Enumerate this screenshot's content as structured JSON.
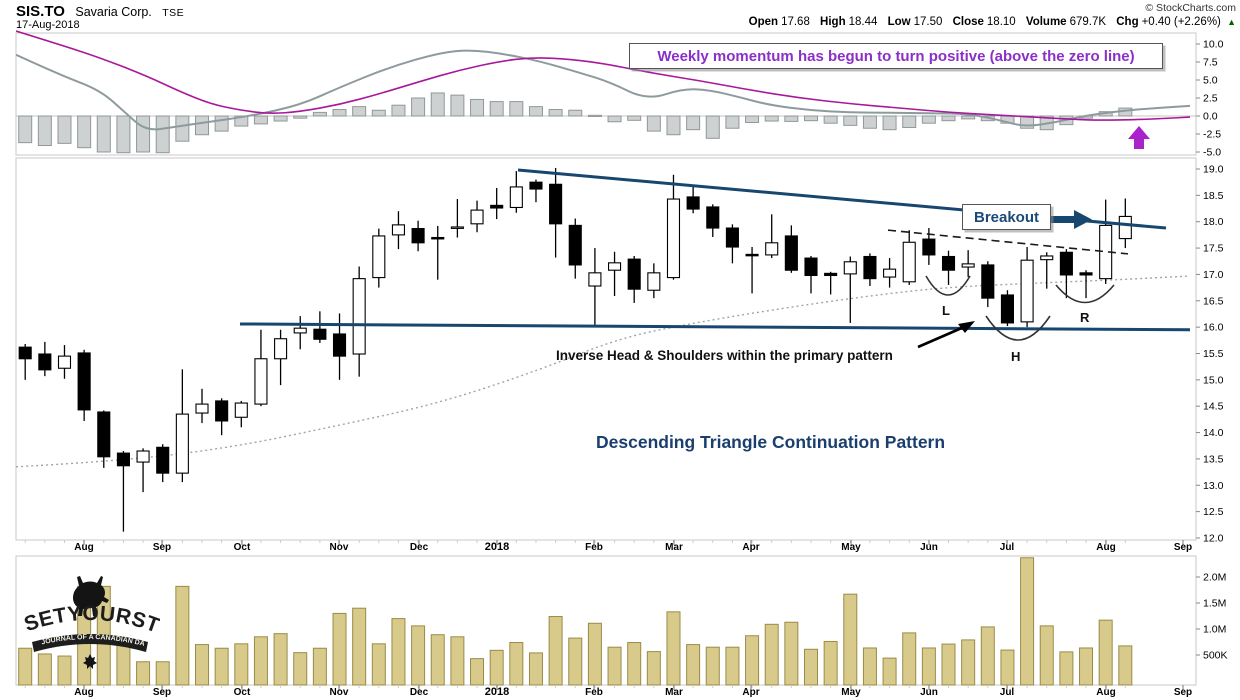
{
  "header": {
    "symbol": "SIS.TO",
    "company": "Savaria Corp.",
    "exchange": "TSE",
    "date": "17-Aug-2018",
    "copyright": "© StockCharts.com",
    "quote": {
      "open_label": "Open",
      "open": "17.68",
      "high_label": "High",
      "high": "18.44",
      "low_label": "Low",
      "low": "17.50",
      "close_label": "Close",
      "close": "18.10",
      "volume_label": "Volume",
      "volume": "679.7K",
      "chg_label": "Chg",
      "chg": "+0.40 (+2.26%)",
      "chg_direction": "up"
    }
  },
  "annotations": {
    "momentum_note": "Weekly momentum has begun to turn positive (above the zero line)",
    "breakout": "Breakout",
    "ihs_note": "Inverse Head & Shoulders within the primary pattern",
    "pattern_title": "Descending Triangle Continuation Pattern",
    "labels": {
      "left_shoulder": "L",
      "head": "H",
      "right_shoulder": "R"
    }
  },
  "logo": {
    "name": "SETYOURSTOP",
    "tagline": "JOURNAL OF A CANADIAN DAY TRADER"
  },
  "colors": {
    "trendline_navy": "#17476f",
    "annotation_purple": "#8b2fc9",
    "arrow_purple": "#aa22cc",
    "candle_up_fill": "#ffffff",
    "candle_down_fill": "#000000",
    "volume_fill": "#d8ca8b",
    "volume_stroke": "#9a8b47",
    "hist_fill": "#cdd1d1",
    "hist_stroke": "#909899",
    "gray_line": "#8e9b9e",
    "magenta_line": "#a8189a",
    "ma_dotted": "#9aa7b0",
    "chg_up_green": "#006600"
  },
  "months": [
    "Aug",
    "Sep",
    "Oct",
    "Nov",
    "Dec",
    "2018",
    "Feb",
    "Mar",
    "Apr",
    "May",
    "Jun",
    "Jul",
    "Aug",
    "Sep"
  ],
  "chart_data": [
    {
      "panel": "momentum",
      "type": "line+histogram",
      "ylim": [
        -5.4,
        11.5
      ],
      "yticks": [
        10.0,
        7.5,
        5.0,
        2.5,
        0.0,
        -2.5,
        -5.0
      ],
      "zero_line": true,
      "histogram": [
        -3.7,
        -4.1,
        -3.8,
        -4.4,
        -5.0,
        -5.1,
        -5.0,
        -5.1,
        -3.5,
        -2.6,
        -2.1,
        -1.4,
        -1.1,
        -0.7,
        -0.3,
        0.5,
        0.9,
        1.3,
        0.8,
        1.5,
        2.5,
        3.2,
        2.9,
        2.3,
        2.0,
        2.0,
        1.3,
        0.9,
        0.8,
        0.1,
        -0.8,
        -0.6,
        -2.1,
        -2.6,
        -1.9,
        -3.1,
        -1.7,
        -0.9,
        -0.7,
        -0.75,
        -0.65,
        -1.0,
        -1.3,
        -1.7,
        -1.9,
        -1.6,
        -1.0,
        -0.65,
        -0.4,
        -0.65,
        -1.0,
        -1.7,
        -1.9,
        -1.2,
        -0.3,
        0.6,
        1.1
      ],
      "series": [
        {
          "name": "momentum-gray",
          "points": [
            [
              16,
              8.5
            ],
            [
              60,
              5.7
            ],
            [
              100,
              3.6
            ],
            [
              125,
              0.5
            ],
            [
              146,
              -2.1
            ],
            [
              175,
              -1.5
            ],
            [
              210,
              -0.8
            ],
            [
              250,
              0.0
            ],
            [
              300,
              1.5
            ],
            [
              340,
              4.0
            ],
            [
              390,
              6.8
            ],
            [
              440,
              8.8
            ],
            [
              470,
              9.2
            ],
            [
              505,
              8.6
            ],
            [
              540,
              7.6
            ],
            [
              580,
              6.0
            ],
            [
              610,
              4.7
            ],
            [
              647,
              2.2
            ],
            [
              683,
              3.8
            ],
            [
              710,
              3.6
            ],
            [
              740,
              2.6
            ],
            [
              770,
              1.5
            ],
            [
              810,
              0.8
            ],
            [
              850,
              0.5
            ],
            [
              890,
              0.45
            ],
            [
              930,
              0.4
            ],
            [
              970,
              0.3
            ],
            [
              1000,
              -0.6
            ],
            [
              1025,
              -1.5
            ],
            [
              1055,
              -0.9
            ],
            [
              1083,
              0.0
            ],
            [
              1120,
              0.7
            ],
            [
              1155,
              1.1
            ],
            [
              1190,
              1.4
            ]
          ]
        },
        {
          "name": "signal-magenta",
          "points": [
            [
              16,
              11.8
            ],
            [
              60,
              9.9
            ],
            [
              100,
              8.1
            ],
            [
              146,
              5.6
            ],
            [
              180,
              3.4
            ],
            [
              210,
              1.7
            ],
            [
              240,
              0.8
            ],
            [
              270,
              0.3
            ],
            [
              300,
              0.6
            ],
            [
              340,
              1.6
            ],
            [
              380,
              3.1
            ],
            [
              420,
              4.8
            ],
            [
              460,
              6.4
            ],
            [
              500,
              7.6
            ],
            [
              530,
              8.1
            ],
            [
              560,
              8.0
            ],
            [
              600,
              7.4
            ],
            [
              650,
              6.0
            ],
            [
              700,
              4.9
            ],
            [
              750,
              3.6
            ],
            [
              800,
              2.5
            ],
            [
              850,
              1.7
            ],
            [
              900,
              1.1
            ],
            [
              950,
              0.5
            ],
            [
              1000,
              0.1
            ],
            [
              1040,
              -0.2
            ],
            [
              1070,
              -0.45
            ],
            [
              1100,
              -0.6
            ],
            [
              1140,
              -0.5
            ],
            [
              1170,
              -0.3
            ],
            [
              1190,
              -0.15
            ]
          ]
        }
      ]
    },
    {
      "panel": "price",
      "type": "candlestick",
      "ylim": [
        11.96,
        19.21
      ],
      "yticks": [
        19.0,
        18.5,
        18.0,
        17.5,
        17.0,
        16.5,
        16.0,
        15.5,
        15.0,
        14.5,
        14.0,
        13.5,
        13.0,
        12.5,
        12.0
      ],
      "candles_ohlc": [
        [
          15.62,
          15.68,
          15.0,
          15.4
        ],
        [
          15.49,
          15.72,
          15.07,
          15.19
        ],
        [
          15.22,
          15.66,
          15.02,
          15.45
        ],
        [
          15.51,
          15.57,
          14.22,
          14.43
        ],
        [
          14.39,
          14.42,
          13.33,
          13.54
        ],
        [
          13.61,
          13.65,
          12.12,
          13.37
        ],
        [
          13.44,
          13.7,
          12.87,
          13.65
        ],
        [
          13.72,
          13.78,
          13.06,
          13.23
        ],
        [
          13.23,
          15.2,
          13.06,
          14.35
        ],
        [
          14.37,
          14.83,
          14.18,
          14.54
        ],
        [
          14.6,
          14.65,
          13.95,
          14.22
        ],
        [
          14.29,
          14.6,
          14.1,
          14.56
        ],
        [
          14.54,
          15.95,
          14.5,
          15.4
        ],
        [
          15.4,
          15.95,
          14.9,
          15.78
        ],
        [
          15.89,
          16.21,
          15.58,
          15.98
        ],
        [
          15.96,
          16.3,
          15.7,
          15.77
        ],
        [
          15.87,
          16.26,
          15.0,
          15.45
        ],
        [
          15.49,
          17.15,
          15.06,
          16.92
        ],
        [
          16.94,
          17.87,
          16.75,
          17.73
        ],
        [
          17.75,
          18.2,
          17.48,
          17.94
        ],
        [
          17.87,
          18.02,
          17.44,
          17.6
        ],
        [
          17.7,
          17.92,
          16.9,
          17.68
        ],
        [
          17.88,
          18.43,
          17.7,
          17.9
        ],
        [
          17.96,
          18.4,
          17.8,
          18.22
        ],
        [
          18.31,
          18.64,
          18.05,
          18.26
        ],
        [
          18.27,
          18.96,
          18.17,
          18.66
        ],
        [
          18.75,
          18.8,
          18.37,
          18.62
        ],
        [
          18.71,
          19.02,
          17.32,
          17.96
        ],
        [
          17.93,
          18.06,
          16.92,
          17.18
        ],
        [
          16.78,
          17.5,
          16.04,
          17.03
        ],
        [
          17.08,
          17.43,
          16.59,
          17.22
        ],
        [
          17.29,
          17.35,
          16.46,
          16.72
        ],
        [
          16.7,
          17.21,
          16.55,
          17.03
        ],
        [
          16.94,
          18.89,
          16.9,
          18.43
        ],
        [
          18.47,
          18.7,
          18.16,
          18.24
        ],
        [
          18.28,
          18.33,
          17.71,
          17.88
        ],
        [
          17.88,
          17.95,
          17.21,
          17.52
        ],
        [
          17.38,
          17.52,
          16.64,
          17.36
        ],
        [
          17.37,
          18.14,
          17.31,
          17.6
        ],
        [
          17.73,
          17.93,
          17.03,
          17.08
        ],
        [
          17.31,
          17.35,
          16.64,
          16.98
        ],
        [
          17.02,
          17.05,
          16.62,
          16.98
        ],
        [
          17.01,
          17.34,
          16.08,
          17.24
        ],
        [
          17.34,
          17.4,
          16.78,
          16.92
        ],
        [
          16.95,
          17.31,
          16.75,
          17.1
        ],
        [
          16.86,
          17.84,
          16.8,
          17.61
        ],
        [
          17.67,
          17.88,
          17.18,
          17.37
        ],
        [
          17.34,
          17.45,
          16.8,
          17.08
        ],
        [
          17.14,
          17.46,
          16.95,
          17.2
        ],
        [
          17.18,
          17.25,
          16.38,
          16.55
        ],
        [
          16.61,
          16.7,
          16.02,
          16.08
        ],
        [
          16.1,
          17.52,
          16.0,
          17.27
        ],
        [
          17.28,
          17.42,
          16.73,
          17.35
        ],
        [
          17.42,
          17.48,
          16.55,
          16.99
        ],
        [
          17.03,
          17.08,
          16.55,
          16.99
        ],
        [
          16.92,
          18.42,
          16.82,
          17.93
        ],
        [
          17.68,
          18.44,
          17.5,
          18.1
        ]
      ],
      "ma_dotted_points": [
        [
          16,
          13.35
        ],
        [
          120,
          13.46
        ],
        [
          230,
          13.71
        ],
        [
          340,
          14.14
        ],
        [
          440,
          14.56
        ],
        [
          540,
          15.19
        ],
        [
          620,
          15.8
        ],
        [
          700,
          16.1
        ],
        [
          780,
          16.35
        ],
        [
          860,
          16.57
        ],
        [
          940,
          16.75
        ],
        [
          1040,
          16.84
        ],
        [
          1120,
          16.9
        ],
        [
          1190,
          16.97
        ]
      ],
      "trendlines": {
        "upper_descending": [
          [
            518,
            18.98
          ],
          [
            1166,
            17.88
          ]
        ],
        "lower_support": [
          [
            240,
            16.06
          ],
          [
            1190,
            15.95
          ]
        ],
        "ihs_neckline_dashed": [
          [
            888,
            17.84
          ],
          [
            1128,
            17.39
          ]
        ]
      }
    },
    {
      "panel": "volume",
      "type": "bar",
      "ylim_thousands": [
        0,
        2600
      ],
      "yticks": [
        {
          "label": "2.0M",
          "value": 2000
        },
        {
          "label": "1.5M",
          "value": 1500
        },
        {
          "label": "1.0M",
          "value": 1000
        },
        {
          "label": "500K",
          "value": 500
        }
      ],
      "values_thousands": [
        630,
        520,
        480,
        1820,
        1820,
        800,
        370,
        370,
        1820,
        700,
        630,
        715,
        850,
        910,
        545,
        630,
        1300,
        1400,
        715,
        1200,
        1060,
        890,
        850,
        430,
        590,
        740,
        540,
        1240,
        825,
        1110,
        650,
        740,
        565,
        1330,
        700,
        650,
        650,
        870,
        1090,
        1130,
        610,
        760,
        1670,
        635,
        440,
        925,
        635,
        710,
        790,
        1040,
        595,
        2370,
        1060,
        560,
        635,
        1170,
        675
      ]
    }
  ]
}
